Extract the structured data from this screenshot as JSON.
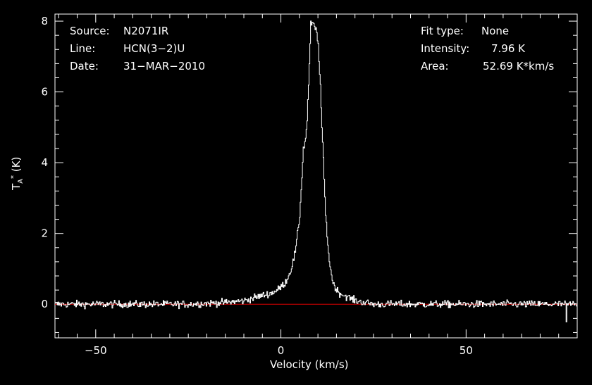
{
  "chart_data": {
    "type": "line",
    "title": "",
    "info_left": [
      {
        "key": "Source:",
        "value": "N2071IR"
      },
      {
        "key": "Line:",
        "value": "HCN(3−2)U"
      },
      {
        "key": "Date:",
        "value": "31−MAR−2010"
      }
    ],
    "info_right": [
      {
        "key": "Fit type:",
        "value": "None"
      },
      {
        "key": "Intensity:",
        "value": "7.96 K"
      },
      {
        "key": "Area:",
        "value": "52.69 K*km/s"
      }
    ],
    "xlabel": "Velocity (km/s)",
    "ylabel_main": "T",
    "ylabel_sup": "*",
    "ylabel_sub": "A",
    "ylabel_unit": " (K)",
    "xlim": [
      -61,
      80
    ],
    "ylim": [
      -0.95,
      8.2
    ],
    "xticks": [
      -50,
      0,
      50
    ],
    "xtick_labels": [
      "−50",
      "0",
      "50"
    ],
    "yticks": [
      0,
      2,
      4,
      6,
      8
    ],
    "ytick_labels": [
      "0",
      "2",
      "4",
      "6",
      "8"
    ],
    "baseline": 0,
    "series": [
      {
        "color": "#ffffff",
        "x": [
          -25,
          -15,
          -10,
          -5,
          -3,
          -1,
          0,
          1,
          2,
          3,
          4,
          5,
          6,
          6.5,
          7,
          7.5,
          8,
          8.5,
          9,
          9.5,
          10,
          10.5,
          11,
          11.5,
          12,
          13,
          14,
          15,
          16,
          18,
          20,
          25
        ],
        "y": [
          0.0,
          0.05,
          0.1,
          0.25,
          0.3,
          0.4,
          0.5,
          0.6,
          0.8,
          1.1,
          1.6,
          2.5,
          4.4,
          4.6,
          5.2,
          6.5,
          7.9,
          7.96,
          7.8,
          7.75,
          7.3,
          6.4,
          5.0,
          3.8,
          2.5,
          1.2,
          0.6,
          0.4,
          0.3,
          0.2,
          0.1,
          0.0
        ],
        "noise_rms": 0.1
      },
      {
        "color": "#e00000",
        "x": [
          -61,
          80
        ],
        "y": [
          0,
          0
        ]
      }
    ],
    "grid": false,
    "legend": "none"
  }
}
